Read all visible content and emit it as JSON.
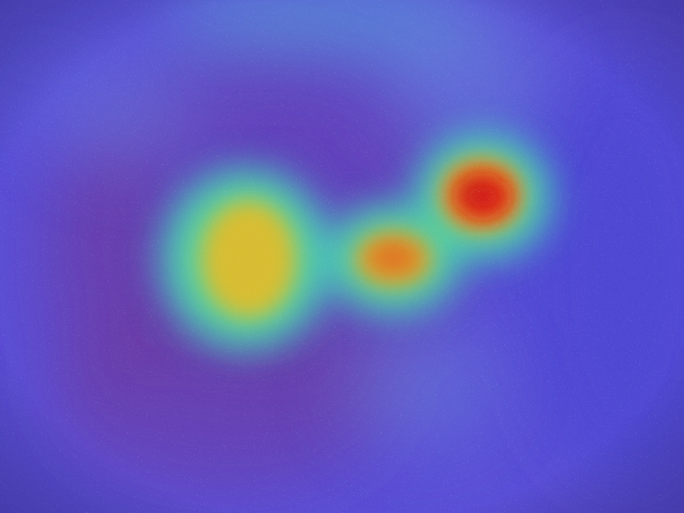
{
  "image": {
    "kind": "heatmap-overlay",
    "base_color": "#5a4fd6",
    "colormap": [
      "#4b3fd0",
      "#3fb0c8",
      "#3fd89a",
      "#d8c23a",
      "#e07a1a",
      "#d81a1a"
    ],
    "hotspots": [
      {
        "name": "hotspot-primary",
        "intensity": 1.0
      },
      {
        "name": "hotspot-secondary",
        "intensity": 0.8
      },
      {
        "name": "hotspot-tertiary",
        "intensity": 0.6
      }
    ]
  }
}
